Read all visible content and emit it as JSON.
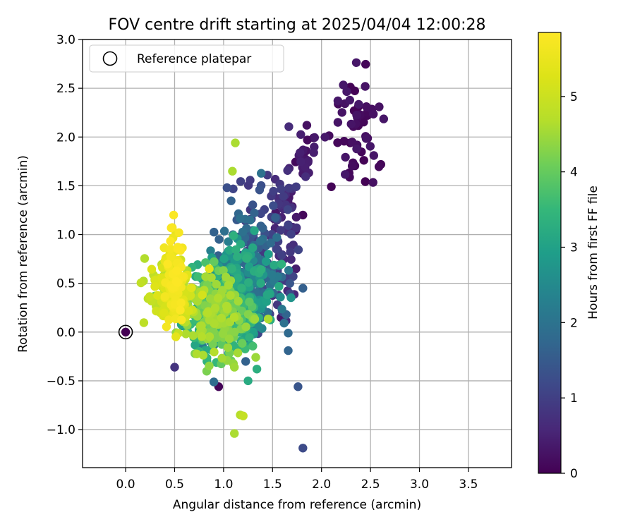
{
  "chart_data": {
    "type": "scatter",
    "title": "FOV centre drift starting at 2025/04/04 12:00:28",
    "xlabel": "Angular distance from reference (arcmin)",
    "ylabel": "Rotation from reference (arcmin)",
    "xlim": [
      -0.44,
      3.94
    ],
    "ylim": [
      -1.39,
      3.0
    ],
    "xticks": [
      "0.0",
      "0.5",
      "1.0",
      "1.5",
      "2.0",
      "2.5",
      "3.0",
      "3.5"
    ],
    "yticks": [
      "−1.0",
      "−0.5",
      "0.0",
      "0.5",
      "1.0",
      "1.5",
      "2.0",
      "2.5",
      "3.0"
    ],
    "grid": true,
    "legend": {
      "location": "upper-left",
      "entries": [
        "Reference platepar"
      ]
    },
    "reference_point": {
      "x": 0.0,
      "y": 0.0
    },
    "colormap": "viridis",
    "colorbar": {
      "label": "Hours from first FF file",
      "range": [
        0,
        5.85
      ],
      "ticks": [
        "0",
        "1",
        "2",
        "3",
        "4",
        "5"
      ]
    },
    "point_count_approx": 1200,
    "clusters": [
      {
        "hours": [
          0.0,
          0.35
        ],
        "x_mean": 2.35,
        "y_mean": 2.15,
        "x_sd": 0.13,
        "y_sd": 0.28,
        "n": 60
      },
      {
        "hours": [
          0.1,
          0.5
        ],
        "x_mean": 1.82,
        "y_mean": 1.78,
        "x_sd": 0.06,
        "y_sd": 0.12,
        "n": 30
      },
      {
        "hours": [
          0.3,
          1.1
        ],
        "x_mean": 1.62,
        "y_mean": 1.05,
        "x_sd": 0.09,
        "y_sd": 0.35,
        "n": 90
      },
      {
        "hours": [
          0.8,
          2.0
        ],
        "x_mean": 1.28,
        "y_mean": 0.75,
        "x_sd": 0.16,
        "y_sd": 0.38,
        "n": 150
      },
      {
        "hours": [
          1.6,
          3.4
        ],
        "x_mean": 1.15,
        "y_mean": 0.42,
        "x_sd": 0.18,
        "y_sd": 0.26,
        "n": 300
      },
      {
        "hours": [
          3.0,
          4.7
        ],
        "x_mean": 0.9,
        "y_mean": 0.18,
        "x_sd": 0.2,
        "y_sd": 0.22,
        "n": 330
      },
      {
        "hours": [
          4.6,
          5.4
        ],
        "x_mean": 0.45,
        "y_mean": 0.38,
        "x_sd": 0.12,
        "y_sd": 0.17,
        "n": 140
      },
      {
        "hours": [
          5.4,
          5.85
        ],
        "x_mean": 0.5,
        "y_mean": 0.52,
        "x_sd": 0.05,
        "y_sd": 0.22,
        "n": 100
      }
    ],
    "notable_points": [
      {
        "x": 1.12,
        "y": 1.94,
        "hours": 4.6
      },
      {
        "x": 1.09,
        "y": 1.65,
        "hours": 4.6
      },
      {
        "x": 0.49,
        "y": 1.2,
        "hours": 5.8
      },
      {
        "x": 1.81,
        "y": 1.2,
        "hours": 0.1
      },
      {
        "x": 2.1,
        "y": 1.49,
        "hours": 0.05
      },
      {
        "x": 1.76,
        "y": -0.56,
        "hours": 1.4
      },
      {
        "x": 1.81,
        "y": -1.19,
        "hours": 1.2
      },
      {
        "x": 1.11,
        "y": -1.04,
        "hours": 4.6
      },
      {
        "x": 1.17,
        "y": -0.85,
        "hours": 4.7
      },
      {
        "x": 1.2,
        "y": -0.86,
        "hours": 4.9
      },
      {
        "x": 0.95,
        "y": -0.56,
        "hours": 0.05
      },
      {
        "x": 0.5,
        "y": -0.36,
        "hours": 0.8
      },
      {
        "x": 1.25,
        "y": -0.5,
        "hours": 3.2
      },
      {
        "x": 1.34,
        "y": -0.38,
        "hours": 3.3
      },
      {
        "x": 1.11,
        "y": -0.36,
        "hours": 4.5
      },
      {
        "x": 1.66,
        "y": -0.19,
        "hours": 1.7
      },
      {
        "x": 1.66,
        "y": -0.01,
        "hours": 1.8
      },
      {
        "x": 1.64,
        "y": 0.18,
        "hours": 1.7
      },
      {
        "x": 1.81,
        "y": 0.45,
        "hours": 1.6
      }
    ]
  },
  "colors": {
    "axes": "#000000",
    "grid": "#b0b0b0",
    "reference_marker": "#000000",
    "legend_border": "#cccccc"
  }
}
